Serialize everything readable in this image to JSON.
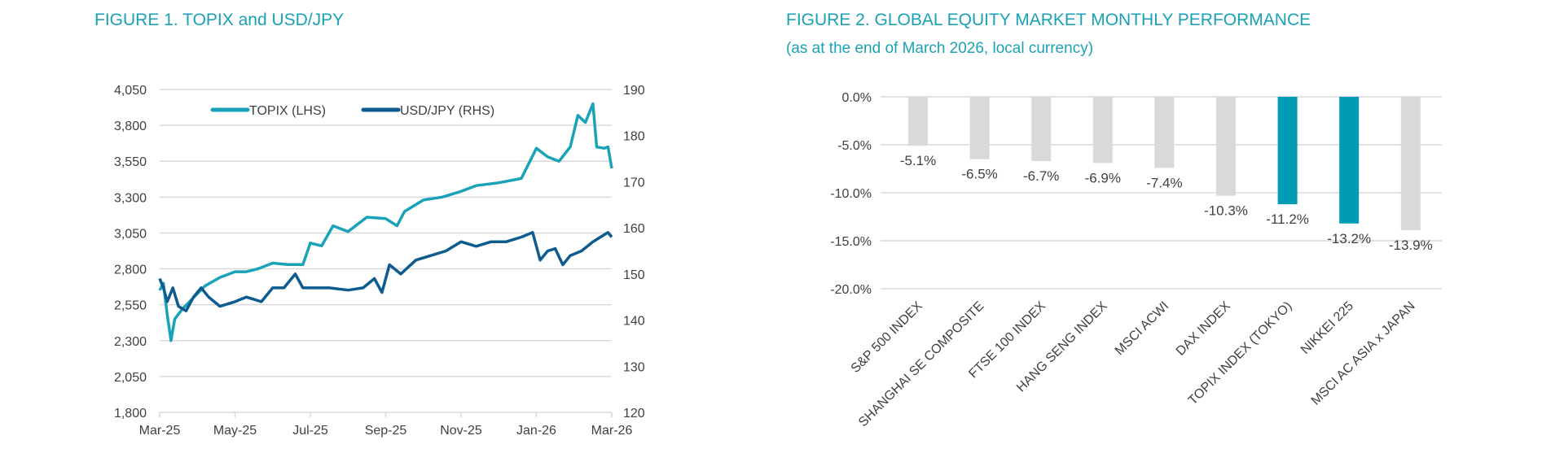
{
  "figure1": {
    "title": "FIGURE 1. TOPIX and USD/JPY"
  },
  "figure2": {
    "title": "FIGURE 2. GLOBAL EQUITY MARKET MONTHLY PERFORMANCE",
    "subtitle": "(as at the end of March 2026, local currency)"
  },
  "colors": {
    "topix": "#1AA3B8",
    "usdjpy": "#0E5C8F",
    "bar": "#D9D9D9",
    "highlight": "#009CB4",
    "grid": "#D9D9D9"
  },
  "chart_data": [
    {
      "type": "line",
      "title": "FIGURE 1. TOPIX and USD/JPY",
      "x_ticks": [
        "Mar-25",
        "May-25",
        "Jul-25",
        "Sep-25",
        "Nov-25",
        "Jan-26",
        "Mar-26"
      ],
      "x_unit": "months since Mar-25",
      "xlim": [
        0,
        12
      ],
      "y_left": {
        "ticks": [
          "4,050",
          "3,800",
          "3,550",
          "3,300",
          "3,050",
          "2,800",
          "2,550",
          "2,300",
          "2,050",
          "1,800"
        ],
        "ylim": [
          1800,
          4050
        ]
      },
      "y_right": {
        "ticks": [
          "190",
          "180",
          "170",
          "160",
          "150",
          "140",
          "130",
          "120"
        ],
        "ylim": [
          120,
          190
        ]
      },
      "grid": true,
      "legend": "top-center",
      "series": [
        {
          "name": "TOPIX (LHS)",
          "axis": "left",
          "points": [
            [
              0,
              2650
            ],
            [
              0.1,
              2700
            ],
            [
              0.2,
              2480
            ],
            [
              0.3,
              2300
            ],
            [
              0.4,
              2450
            ],
            [
              0.6,
              2520
            ],
            [
              0.9,
              2600
            ],
            [
              1.2,
              2680
            ],
            [
              1.6,
              2740
            ],
            [
              2.0,
              2780
            ],
            [
              2.3,
              2780
            ],
            [
              2.6,
              2800
            ],
            [
              3.0,
              2840
            ],
            [
              3.4,
              2830
            ],
            [
              3.8,
              2830
            ],
            [
              4.0,
              2980
            ],
            [
              4.3,
              2960
            ],
            [
              4.6,
              3100
            ],
            [
              5.0,
              3060
            ],
            [
              5.5,
              3160
            ],
            [
              6.0,
              3150
            ],
            [
              6.3,
              3100
            ],
            [
              6.5,
              3200
            ],
            [
              7.0,
              3280
            ],
            [
              7.5,
              3300
            ],
            [
              8.0,
              3340
            ],
            [
              8.4,
              3380
            ],
            [
              9.0,
              3400
            ],
            [
              9.6,
              3430
            ],
            [
              10.0,
              3640
            ],
            [
              10.3,
              3580
            ],
            [
              10.6,
              3550
            ],
            [
              10.9,
              3650
            ],
            [
              11.1,
              3870
            ],
            [
              11.3,
              3820
            ],
            [
              11.5,
              3950
            ],
            [
              11.6,
              3650
            ],
            [
              11.8,
              3640
            ],
            [
              11.9,
              3650
            ],
            [
              12.0,
              3500
            ]
          ]
        },
        {
          "name": "USD/JPY (RHS)",
          "axis": "right",
          "points": [
            [
              0,
              149
            ],
            [
              0.1,
              147
            ],
            [
              0.2,
              144
            ],
            [
              0.35,
              147
            ],
            [
              0.5,
              143
            ],
            [
              0.7,
              142
            ],
            [
              0.9,
              145
            ],
            [
              1.1,
              147
            ],
            [
              1.3,
              145
            ],
            [
              1.6,
              143
            ],
            [
              2.0,
              144
            ],
            [
              2.3,
              145
            ],
            [
              2.7,
              144
            ],
            [
              3.0,
              147
            ],
            [
              3.3,
              147
            ],
            [
              3.6,
              150
            ],
            [
              3.8,
              147
            ],
            [
              4.2,
              147
            ],
            [
              4.5,
              147
            ],
            [
              5.0,
              146.5
            ],
            [
              5.4,
              147
            ],
            [
              5.7,
              149
            ],
            [
              5.9,
              146
            ],
            [
              6.1,
              152
            ],
            [
              6.4,
              150
            ],
            [
              6.8,
              153
            ],
            [
              7.2,
              154
            ],
            [
              7.6,
              155
            ],
            [
              8.0,
              157
            ],
            [
              8.4,
              156
            ],
            [
              8.8,
              157
            ],
            [
              9.2,
              157
            ],
            [
              9.6,
              158
            ],
            [
              9.9,
              159
            ],
            [
              10.1,
              153
            ],
            [
              10.3,
              155
            ],
            [
              10.5,
              155.5
            ],
            [
              10.7,
              152
            ],
            [
              10.9,
              154
            ],
            [
              11.2,
              155
            ],
            [
              11.5,
              157
            ],
            [
              11.7,
              158
            ],
            [
              11.9,
              159
            ],
            [
              12.0,
              158
            ]
          ]
        }
      ]
    },
    {
      "type": "bar",
      "title": "FIGURE 2. GLOBAL EQUITY MARKET MONTHLY PERFORMANCE",
      "subtitle": "(as at the end of March 2026, local currency)",
      "categories": [
        "S&P 500 INDEX",
        "SHANGHAI SE COMPOSITE",
        "FTSE 100 INDEX",
        "HANG SENG INDEX",
        "MSCI ACWI",
        "DAX INDEX",
        "TOPIX INDEX (TOKYO)",
        "NIKKEI 225",
        "MSCI AC ASIA x JAPAN"
      ],
      "values": [
        -5.1,
        -6.5,
        -6.7,
        -6.9,
        -7.4,
        -10.3,
        -11.2,
        -13.2,
        -13.9
      ],
      "data_labels": [
        "-5.1%",
        "-6.5%",
        "-6.7%",
        "-6.9%",
        "-7.4%",
        "-10.3%",
        "-11.2%",
        "-13.2%",
        "-13.9%"
      ],
      "highlighted": [
        false,
        false,
        false,
        false,
        false,
        false,
        true,
        true,
        false
      ],
      "y_ticks": [
        "0.0%",
        "-5.0%",
        "-10.0%",
        "-15.0%",
        "-20.0%"
      ],
      "ylim": [
        -20,
        0
      ],
      "grid": true
    }
  ]
}
